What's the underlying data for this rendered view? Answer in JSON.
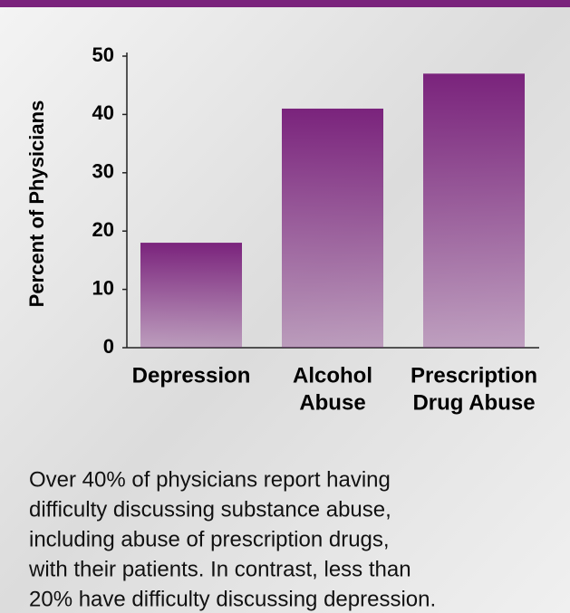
{
  "chart_data": {
    "type": "bar",
    "y_label": "Percent of Physicians",
    "categories": [
      [
        "Depression"
      ],
      [
        "Alcohol",
        "Abuse"
      ],
      [
        "Prescription",
        "Drug Abuse"
      ]
    ],
    "values": [
      18,
      41,
      47
    ],
    "color": "#7a237c",
    "ylim": [
      0,
      50
    ],
    "yticks": [
      0,
      10,
      20,
      30,
      40,
      50
    ],
    "caption": [
      "Over 40% of physicians report having",
      "difficulty discussing substance abuse,",
      "including abuse of prescription drugs,",
      "with their patients. In contrast, less than",
      "20% have difficulty discussing depression."
    ]
  }
}
